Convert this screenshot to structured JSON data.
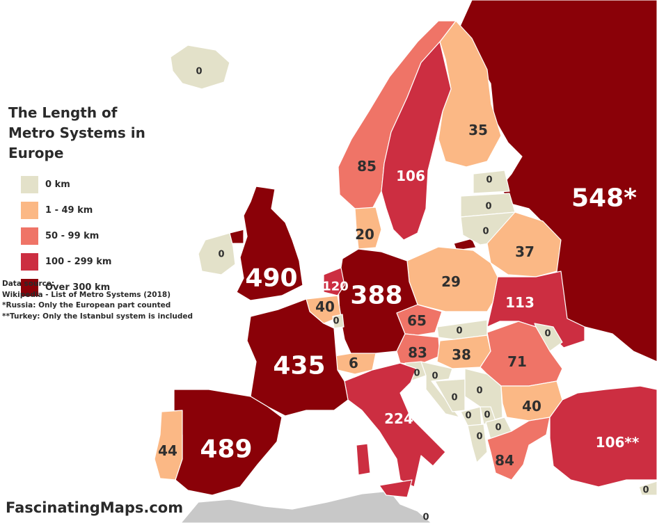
{
  "title": "The Length of Metro Systems in Europe",
  "legend": [
    {
      "label": "0 km",
      "color": "#e3e1c9"
    },
    {
      "label": "1 - 49 km",
      "color": "#fbb885"
    },
    {
      "label": "50 - 99 km",
      "color": "#ef7467"
    },
    {
      "label": "100 - 299 km",
      "color": "#cc2e41"
    },
    {
      "label": "Over 300 km",
      "color": "#8a0108"
    }
  ],
  "notes": {
    "heading": "Data source:",
    "source": "Wikipedia - List of Metro Systems (2018)",
    "russia": "*Russia: Only the European part counted",
    "turkey": "**Turkey: Only the Istanbul system is included"
  },
  "brand": "FascinatingMaps.com",
  "map_labels": {
    "russia": "548*",
    "uk": "490",
    "spain": "489",
    "france": "435",
    "germany": "388",
    "italy": "224",
    "sweden": "106",
    "turkey": "106**",
    "netherlands": "120",
    "ukraine": "113",
    "norway": "85",
    "greece": "84",
    "austria": "83",
    "romania": "71",
    "czechia": "65",
    "portugal": "44",
    "belgium": "40",
    "bulgaria": "40",
    "hungary": "38",
    "belarus": "37",
    "finland": "35",
    "poland": "29",
    "denmark": "20",
    "switzerland": "6",
    "iceland": "0",
    "ireland": "0",
    "luxembourg": "0",
    "estonia": "0",
    "latvia": "0",
    "lithuania": "0",
    "slovakia": "0",
    "moldova": "0",
    "slovenia": "0",
    "croatia": "0",
    "bosnia": "0",
    "serbia": "0",
    "kosovo": "0",
    "montenegro": "0",
    "albania": "0",
    "macedonia": "0",
    "cyprus": "0",
    "africa": "0"
  }
}
